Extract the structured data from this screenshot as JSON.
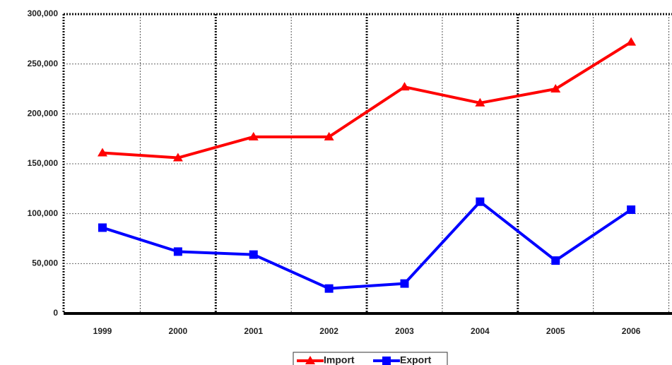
{
  "chart_data": {
    "type": "line",
    "categories": [
      "1999",
      "2000",
      "2001",
      "2002",
      "2003",
      "2004",
      "2005",
      "2006"
    ],
    "series": [
      {
        "name": "Import",
        "color": "#ff0000",
        "marker": "triangle",
        "values": [
          161000,
          156000,
          177000,
          177000,
          227000,
          211000,
          225000,
          272000
        ]
      },
      {
        "name": "Export",
        "color": "#0000ff",
        "marker": "square",
        "values": [
          86000,
          62000,
          59000,
          25000,
          30000,
          112000,
          53000,
          104000
        ]
      }
    ],
    "ylim": [
      0,
      300000
    ],
    "yticks": [
      {
        "value": 0,
        "label": "0"
      },
      {
        "value": 50000,
        "label": "50,000"
      },
      {
        "value": 100000,
        "label": "100,000"
      },
      {
        "value": 150000,
        "label": "150,000"
      },
      {
        "value": 200000,
        "label": "200,000"
      },
      {
        "value": 250000,
        "label": "250,000"
      },
      {
        "value": 300000,
        "label": "300,000"
      }
    ],
    "grid": true,
    "legend": "bottom"
  }
}
